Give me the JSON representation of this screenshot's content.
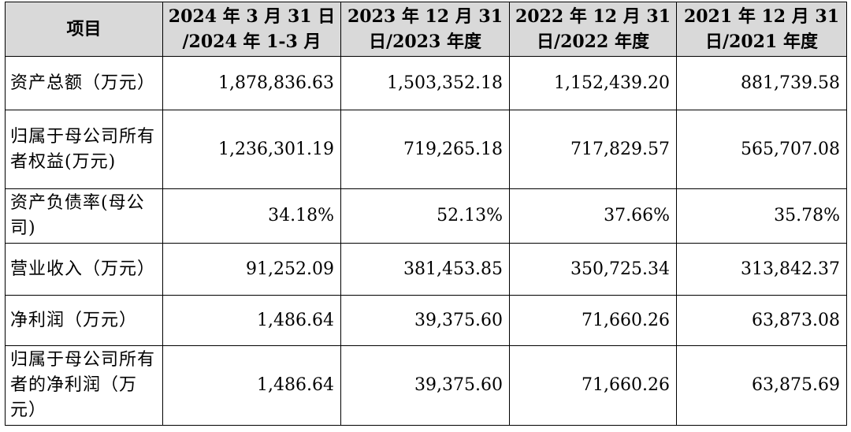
{
  "headers": [
    "项目",
    "2024 年 3 月 31 日 /2024 年 1-3 月",
    "2023 年 12 月 31 日/2023 年度",
    "2022 年 12 月 31 日/2022 年度",
    "2021 年 12 月 31 日/2021 年度"
  ],
  "header_lines": [
    [
      "项目"
    ],
    [
      "2024 年 3 月 31 日",
      "/2024 年 1-3 月"
    ],
    [
      "2023 年 12 月 31",
      "日/2023 年度"
    ],
    [
      "2022 年 12 月 31",
      "日/2022 年度"
    ],
    [
      "2021 年 12 月 31",
      "日/2021 年度"
    ]
  ],
  "rows": [
    {
      "label": "资产总额（万元）",
      "values": [
        "1,878,836.63",
        "1,503,352.18",
        "1,152,439.20",
        "881,739.58"
      ]
    },
    {
      "label": "归属于母公司所有者权益(万元)",
      "values": [
        "1,236,301.19",
        "719,265.18",
        "717,829.57",
        "565,707.08"
      ]
    },
    {
      "label": "资产负债率(母公司)",
      "values": [
        "34.18%",
        "52.13%",
        "37.66%",
        "35.78%"
      ]
    },
    {
      "label": "营业收入（万元）",
      "values": [
        "91,252.09",
        "381,453.85",
        "350,725.34",
        "313,842.37"
      ]
    },
    {
      "label": "净利润（万元）",
      "values": [
        "1,486.64",
        "39,375.60",
        "71,660.26",
        "63,873.08"
      ]
    },
    {
      "label": "归属于母公司所有者的净利润（万元）",
      "values": [
        "1,486.64",
        "39,375.60",
        "71,660.26",
        "63,875.69"
      ]
    }
  ]
}
